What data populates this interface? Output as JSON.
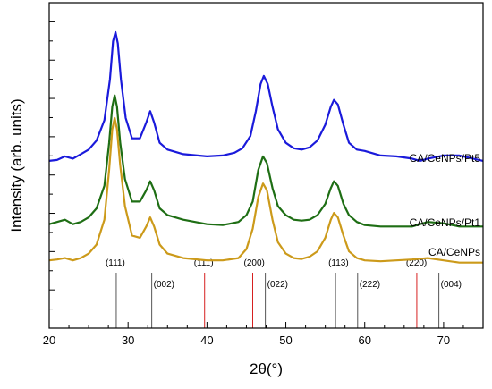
{
  "chart_data": {
    "type": "line",
    "title": "",
    "xlabel": "2θ(°)",
    "ylabel": "Intensity (arb. units)",
    "xlim": [
      20,
      75
    ],
    "xticks": [
      20,
      30,
      40,
      50,
      60,
      70
    ],
    "xtick_labels": [
      "20",
      "30",
      "40",
      "50",
      "60",
      "70"
    ],
    "y_tick_labels_shown": false,
    "grid": false,
    "legend": "none",
    "series": [
      {
        "name": "CA/CeNPs/Pt5",
        "color": "#1a1adb",
        "points": [
          [
            20,
            2.5
          ],
          [
            21,
            2.52
          ],
          [
            22,
            2.6
          ],
          [
            23,
            2.55
          ],
          [
            24,
            2.65
          ],
          [
            25,
            2.75
          ],
          [
            26,
            2.95
          ],
          [
            27,
            3.4
          ],
          [
            27.7,
            4.3
          ],
          [
            28.1,
            5.15
          ],
          [
            28.4,
            5.35
          ],
          [
            28.7,
            5.1
          ],
          [
            29.1,
            4.3
          ],
          [
            29.7,
            3.45
          ],
          [
            30.5,
            3.0
          ],
          [
            31.5,
            3.0
          ],
          [
            32.3,
            3.35
          ],
          [
            32.8,
            3.6
          ],
          [
            33.3,
            3.35
          ],
          [
            34,
            2.9
          ],
          [
            35,
            2.75
          ],
          [
            37,
            2.65
          ],
          [
            40,
            2.6
          ],
          [
            42,
            2.62
          ],
          [
            43.5,
            2.68
          ],
          [
            44.5,
            2.78
          ],
          [
            45.5,
            3.05
          ],
          [
            46.2,
            3.6
          ],
          [
            46.8,
            4.2
          ],
          [
            47.2,
            4.38
          ],
          [
            47.7,
            4.2
          ],
          [
            48.3,
            3.7
          ],
          [
            49,
            3.2
          ],
          [
            50,
            2.9
          ],
          [
            51,
            2.78
          ],
          [
            52,
            2.75
          ],
          [
            53,
            2.8
          ],
          [
            54,
            2.95
          ],
          [
            55,
            3.3
          ],
          [
            55.7,
            3.7
          ],
          [
            56.1,
            3.85
          ],
          [
            56.6,
            3.75
          ],
          [
            57.3,
            3.3
          ],
          [
            58,
            2.9
          ],
          [
            59,
            2.75
          ],
          [
            60,
            2.72
          ],
          [
            62,
            2.62
          ],
          [
            64,
            2.6
          ],
          [
            66,
            2.55
          ],
          [
            67,
            2.5
          ],
          [
            68,
            2.55
          ],
          [
            70,
            2.62
          ],
          [
            72,
            2.62
          ],
          [
            75,
            2.5
          ]
        ]
      },
      {
        "name": "CA/CeNPs/Pt1",
        "color": "#1e6e14",
        "points": [
          [
            20,
            1.1
          ],
          [
            21,
            1.15
          ],
          [
            22,
            1.2
          ],
          [
            23,
            1.1
          ],
          [
            24,
            1.15
          ],
          [
            25,
            1.25
          ],
          [
            26,
            1.45
          ],
          [
            27,
            1.95
          ],
          [
            27.6,
            2.9
          ],
          [
            28,
            3.7
          ],
          [
            28.3,
            3.95
          ],
          [
            28.6,
            3.7
          ],
          [
            29,
            2.9
          ],
          [
            29.6,
            2.1
          ],
          [
            30.5,
            1.6
          ],
          [
            31.5,
            1.6
          ],
          [
            32.3,
            1.85
          ],
          [
            32.8,
            2.05
          ],
          [
            33.3,
            1.85
          ],
          [
            34,
            1.45
          ],
          [
            35,
            1.3
          ],
          [
            37,
            1.2
          ],
          [
            40,
            1.1
          ],
          [
            42,
            1.08
          ],
          [
            44,
            1.15
          ],
          [
            45,
            1.3
          ],
          [
            45.8,
            1.6
          ],
          [
            46.5,
            2.3
          ],
          [
            47.1,
            2.6
          ],
          [
            47.6,
            2.45
          ],
          [
            48.3,
            1.9
          ],
          [
            49,
            1.5
          ],
          [
            50,
            1.3
          ],
          [
            51,
            1.2
          ],
          [
            52,
            1.18
          ],
          [
            53,
            1.2
          ],
          [
            54,
            1.3
          ],
          [
            55,
            1.55
          ],
          [
            55.7,
            1.9
          ],
          [
            56.1,
            2.05
          ],
          [
            56.6,
            1.95
          ],
          [
            57.3,
            1.55
          ],
          [
            58,
            1.3
          ],
          [
            59,
            1.15
          ],
          [
            60,
            1.08
          ],
          [
            62,
            1.05
          ],
          [
            64,
            1.05
          ],
          [
            66,
            1.05
          ],
          [
            68,
            1.15
          ],
          [
            70,
            1.12
          ],
          [
            72,
            1.05
          ],
          [
            75,
            1.05
          ]
        ]
      },
      {
        "name": "CA/CeNPs",
        "color": "#cc9a1a",
        "points": [
          [
            20,
            0.3
          ],
          [
            21,
            0.32
          ],
          [
            22,
            0.35
          ],
          [
            23,
            0.3
          ],
          [
            24,
            0.35
          ],
          [
            25,
            0.45
          ],
          [
            26,
            0.65
          ],
          [
            27,
            1.2
          ],
          [
            27.6,
            2.3
          ],
          [
            28,
            3.2
          ],
          [
            28.3,
            3.45
          ],
          [
            28.6,
            3.2
          ],
          [
            29,
            2.4
          ],
          [
            29.6,
            1.5
          ],
          [
            30.5,
            0.85
          ],
          [
            31.5,
            0.8
          ],
          [
            32.3,
            1.05
          ],
          [
            32.8,
            1.25
          ],
          [
            33.3,
            1.05
          ],
          [
            34,
            0.65
          ],
          [
            35,
            0.45
          ],
          [
            37,
            0.35
          ],
          [
            40,
            0.3
          ],
          [
            42,
            0.3
          ],
          [
            44,
            0.35
          ],
          [
            45,
            0.55
          ],
          [
            45.8,
            1.0
          ],
          [
            46.5,
            1.7
          ],
          [
            47.1,
            2.0
          ],
          [
            47.6,
            1.85
          ],
          [
            48.3,
            1.2
          ],
          [
            49,
            0.7
          ],
          [
            50,
            0.45
          ],
          [
            51,
            0.35
          ],
          [
            52,
            0.33
          ],
          [
            53,
            0.38
          ],
          [
            54,
            0.5
          ],
          [
            55,
            0.8
          ],
          [
            55.7,
            1.2
          ],
          [
            56.1,
            1.35
          ],
          [
            56.6,
            1.25
          ],
          [
            57.3,
            0.85
          ],
          [
            58,
            0.5
          ],
          [
            59,
            0.35
          ],
          [
            60,
            0.3
          ],
          [
            62,
            0.28
          ],
          [
            64,
            0.3
          ],
          [
            66,
            0.32
          ],
          [
            68,
            0.35
          ],
          [
            70,
            0.3
          ],
          [
            72,
            0.25
          ],
          [
            75,
            0.25
          ]
        ]
      }
    ],
    "reference_lines": [
      {
        "x": 28.5,
        "label": "(111)",
        "color": "#555555"
      },
      {
        "x": 33.0,
        "label": "(002)",
        "color": "#555555"
      },
      {
        "x": 39.7,
        "label": "(111)",
        "color": "#d62020"
      },
      {
        "x": 45.8,
        "label": "(200)",
        "color": "#d62020"
      },
      {
        "x": 47.4,
        "label": "(022)",
        "color": "#555555"
      },
      {
        "x": 56.3,
        "label": "(113)",
        "color": "#555555"
      },
      {
        "x": 59.1,
        "label": "(222)",
        "color": "#555555"
      },
      {
        "x": 66.6,
        "label": "(220)",
        "color": "#d62020"
      },
      {
        "x": 69.4,
        "label": "(004)",
        "color": "#555555"
      }
    ]
  }
}
